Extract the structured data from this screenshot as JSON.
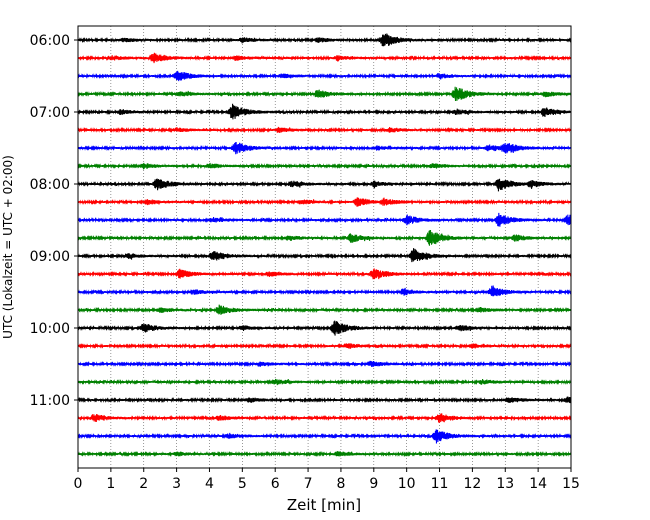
{
  "chart_data": {
    "type": "line",
    "title": "",
    "xlabel": "Zeit  [min]",
    "ylabel": "UTC (Lokalzeit = UTC + 02:00)",
    "xlim": [
      0,
      15
    ],
    "x_ticks": [
      "0",
      "1",
      "2",
      "3",
      "4",
      "5",
      "6",
      "7",
      "8",
      "9",
      "10",
      "11",
      "12",
      "13",
      "14",
      "15"
    ],
    "y_ticks": [
      "06:00",
      "07:00",
      "08:00",
      "09:00",
      "10:00",
      "11:00"
    ],
    "grid": "vertical dotted at each minute",
    "trace_interval_minutes": 15,
    "color_cycle": [
      "#000000",
      "#ff0000",
      "#0000ff",
      "#008000"
    ],
    "traces": [
      {
        "start": "06:00",
        "events": [
          [
            9.3,
            1.0
          ],
          [
            7.3,
            0.3
          ],
          [
            5.0,
            0.3
          ],
          [
            1.4,
            0.25
          ]
        ]
      },
      {
        "start": "06:15",
        "events": [
          [
            2.3,
            0.6
          ],
          [
            4.8,
            0.3
          ],
          [
            1.0,
            0.3
          ],
          [
            7.9,
            0.3
          ]
        ]
      },
      {
        "start": "06:30",
        "events": [
          [
            3.0,
            0.75
          ],
          [
            11.0,
            0.3
          ],
          [
            6.2,
            0.25
          ]
        ]
      },
      {
        "start": "06:45",
        "events": [
          [
            11.5,
            1.0
          ],
          [
            7.3,
            0.6
          ],
          [
            3.1,
            0.3
          ],
          [
            14.2,
            0.35
          ]
        ]
      },
      {
        "start": "07:00",
        "events": [
          [
            4.7,
            1.0
          ],
          [
            14.2,
            0.6
          ],
          [
            11.5,
            0.35
          ],
          [
            1.3,
            0.3
          ]
        ]
      },
      {
        "start": "07:15",
        "events": [
          [
            9.5,
            0.3
          ],
          [
            6.1,
            0.3
          ],
          [
            3.0,
            0.25
          ]
        ]
      },
      {
        "start": "07:30",
        "events": [
          [
            4.8,
            0.8
          ],
          [
            13.0,
            0.7
          ],
          [
            12.5,
            0.4
          ],
          [
            9.1,
            0.25
          ]
        ]
      },
      {
        "start": "07:45",
        "events": [
          [
            2.0,
            0.35
          ],
          [
            4.0,
            0.3
          ],
          [
            10.8,
            0.3
          ]
        ]
      },
      {
        "start": "08:00",
        "events": [
          [
            2.4,
            0.75
          ],
          [
            12.8,
            0.9
          ],
          [
            6.5,
            0.4
          ],
          [
            9.0,
            0.35
          ],
          [
            13.8,
            0.4
          ]
        ]
      },
      {
        "start": "08:15",
        "events": [
          [
            8.5,
            0.6
          ],
          [
            9.3,
            0.4
          ],
          [
            2.1,
            0.3
          ],
          [
            6.8,
            0.3
          ]
        ]
      },
      {
        "start": "08:30",
        "events": [
          [
            10.0,
            0.65
          ],
          [
            12.8,
            0.85
          ],
          [
            14.9,
            0.7
          ],
          [
            4.1,
            0.3
          ]
        ]
      },
      {
        "start": "08:45",
        "events": [
          [
            10.7,
            1.0
          ],
          [
            8.3,
            0.6
          ],
          [
            13.3,
            0.4
          ],
          [
            6.4,
            0.3
          ]
        ]
      },
      {
        "start": "09:00",
        "events": [
          [
            4.1,
            0.7
          ],
          [
            10.2,
            1.0
          ],
          [
            1.5,
            0.3
          ]
        ]
      },
      {
        "start": "09:15",
        "events": [
          [
            3.1,
            0.6
          ],
          [
            9.0,
            0.75
          ],
          [
            5.8,
            0.3
          ]
        ]
      },
      {
        "start": "09:30",
        "events": [
          [
            12.6,
            0.8
          ],
          [
            9.9,
            0.4
          ],
          [
            3.5,
            0.3
          ]
        ]
      },
      {
        "start": "09:45",
        "events": [
          [
            4.3,
            0.6
          ],
          [
            2.5,
            0.3
          ],
          [
            12.2,
            0.3
          ]
        ]
      },
      {
        "start": "10:00",
        "events": [
          [
            7.8,
            1.0
          ],
          [
            2.0,
            0.6
          ],
          [
            11.6,
            0.4
          ],
          [
            5.0,
            0.3
          ]
        ]
      },
      {
        "start": "10:15",
        "events": [
          [
            8.2,
            0.3
          ],
          [
            12.0,
            0.25
          ]
        ]
      },
      {
        "start": "10:30",
        "events": [
          [
            8.9,
            0.35
          ],
          [
            5.5,
            0.25
          ]
        ]
      },
      {
        "start": "10:45",
        "events": [
          [
            6.0,
            0.35
          ],
          [
            12.3,
            0.3
          ]
        ]
      },
      {
        "start": "11:00",
        "events": [
          [
            14.9,
            0.4
          ],
          [
            5.2,
            0.3
          ],
          [
            13.1,
            0.35
          ]
        ]
      },
      {
        "start": "11:15",
        "events": [
          [
            0.5,
            0.5
          ],
          [
            11.0,
            0.6
          ],
          [
            4.3,
            0.3
          ]
        ]
      },
      {
        "start": "11:30",
        "events": [
          [
            10.9,
            0.85
          ],
          [
            4.6,
            0.3
          ]
        ]
      },
      {
        "start": "11:45",
        "events": [
          [
            7.9,
            0.3
          ],
          [
            3.0,
            0.25
          ]
        ]
      }
    ]
  }
}
